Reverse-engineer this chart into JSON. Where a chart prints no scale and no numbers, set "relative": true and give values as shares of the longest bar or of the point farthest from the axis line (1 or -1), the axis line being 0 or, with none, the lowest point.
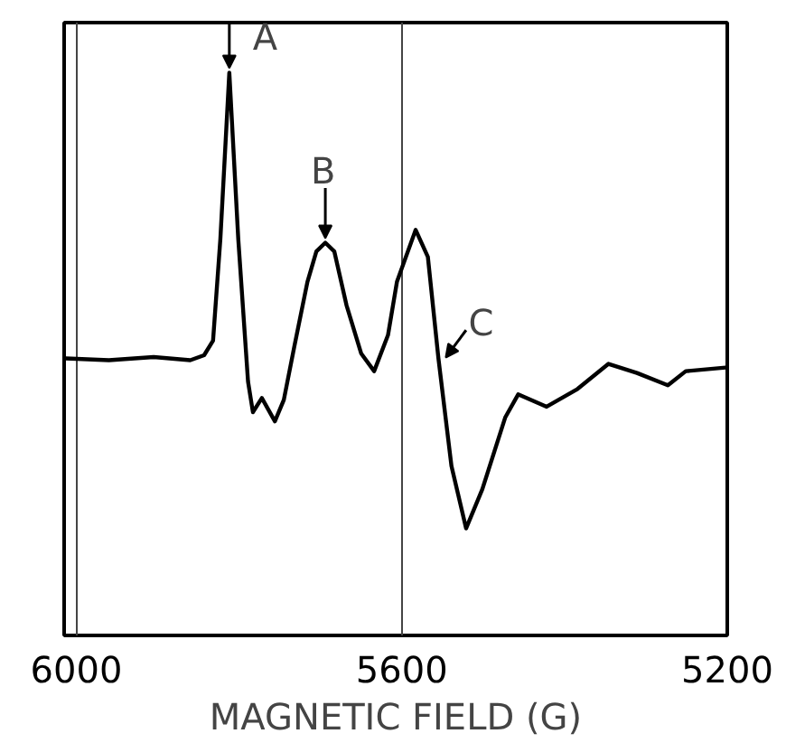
{
  "chart_data": {
    "type": "line",
    "xlabel": "MAGNETIC FIELD (G)",
    "relative": true,
    "xlim": [
      6015,
      5200
    ],
    "xticks": [
      6000,
      5600,
      5200
    ],
    "grid": "x",
    "color": "#000000",
    "x": [
      6013,
      5960,
      5905,
      5860,
      5843,
      5832,
      5823,
      5812,
      5801,
      5789,
      5783,
      5772,
      5756,
      5745,
      5732,
      5716,
      5705,
      5694,
      5683,
      5668,
      5650,
      5634,
      5617,
      5606,
      5583,
      5568,
      5555,
      5539,
      5521,
      5501,
      5473,
      5457,
      5422,
      5384,
      5346,
      5311,
      5273,
      5251,
      5202
    ],
    "values": [
      0.373,
      0.369,
      0.376,
      0.369,
      0.38,
      0.412,
      0.635,
      1.0,
      0.635,
      0.322,
      0.255,
      0.286,
      0.235,
      0.282,
      0.4,
      0.541,
      0.608,
      0.627,
      0.608,
      0.49,
      0.384,
      0.345,
      0.424,
      0.541,
      0.655,
      0.596,
      0.373,
      0.137,
      0,
      0.086,
      0.243,
      0.294,
      0.267,
      0.306,
      0.361,
      0.341,
      0.314,
      0.345,
      0.353
    ],
    "annotations": [
      {
        "text": "A",
        "x": 5812,
        "y": 1.0
      },
      {
        "text": "B",
        "x": 5694,
        "y": 0.627
      },
      {
        "text": "C",
        "x": 5546,
        "y": 0.365
      }
    ]
  }
}
